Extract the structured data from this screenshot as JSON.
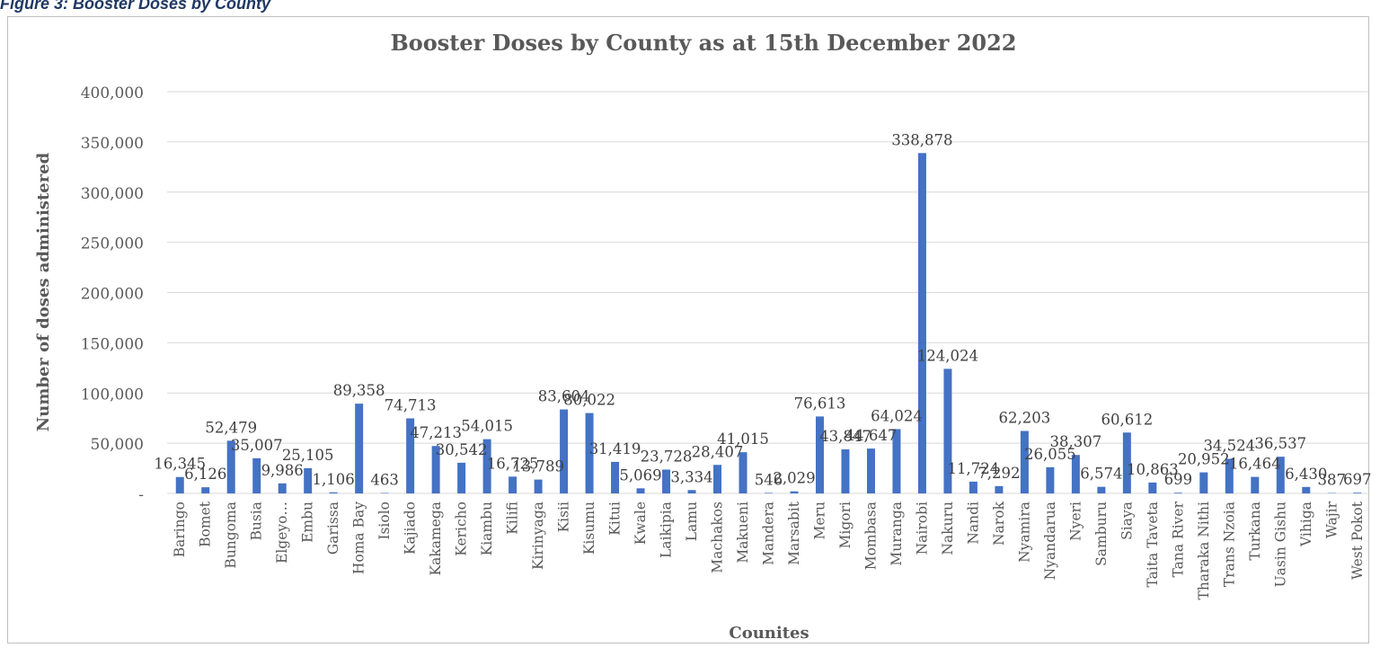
{
  "caption": "Figure 3: Booster Doses by County",
  "chart_data": {
    "type": "bar",
    "title": "Booster Doses by County as at 15th December 2022",
    "xlabel": "Counites",
    "ylabel": "Number of doses administered",
    "ylim": [
      0,
      400000
    ],
    "yticks": [
      0,
      50000,
      100000,
      150000,
      200000,
      250000,
      300000,
      350000,
      400000
    ],
    "ytick_labels": [
      "-",
      "50,000",
      "100,000",
      "150,000",
      "200,000",
      "250,000",
      "300,000",
      "350,000",
      "400,000"
    ],
    "grid": true,
    "legend": "none",
    "bar_color": "#4472c4",
    "categories": [
      "Baringo",
      "Bomet",
      "Bungoma",
      "Busia",
      "Elgeyo…",
      "Embu",
      "Garissa",
      "Homa Bay",
      "Isiolo",
      "Kajiado",
      "Kakamega",
      "Kericho",
      "Kiambu",
      "Kilifi",
      "Kirinyaga",
      "Kisii",
      "Kisumu",
      "Kitui",
      "Kwale",
      "Laikipia",
      "Lamu",
      "Machakos",
      "Makueni",
      "Mandera",
      "Marsabit",
      "Meru",
      "Migori",
      "Mombasa",
      "Muranga",
      "Nairobi",
      "Nakuru",
      "Nandi",
      "Narok",
      "Nyamira",
      "Nyandarua",
      "Nyeri",
      "Samburu",
      "Siaya",
      "Taita Taveta",
      "Tana River",
      "Tharaka Nithi",
      "Trans Nzoia",
      "Turkana",
      "Uasin Gishu",
      "Vihiga",
      "Wajir",
      "West Pokot"
    ],
    "values": [
      16345,
      6126,
      52479,
      35007,
      9986,
      25105,
      1106,
      89358,
      463,
      74713,
      47213,
      30542,
      54015,
      16725,
      13789,
      83604,
      80022,
      31419,
      5069,
      23728,
      3334,
      28407,
      41015,
      546,
      2029,
      76613,
      43847,
      44647,
      64024,
      338878,
      124024,
      11724,
      7292,
      62203,
      26055,
      38307,
      6574,
      60612,
      10863,
      699,
      20952,
      34524,
      16464,
      36537,
      6430,
      387,
      697
    ],
    "data_labels": [
      "16,345",
      "6,126",
      "52,479",
      "35,007",
      "9,986",
      "25,105",
      "1,106",
      "89,358",
      "463",
      "74,713",
      "47,213",
      "30,542",
      "54,015",
      "16,725",
      "13,789",
      "83,604",
      "80,022",
      "31,419",
      "5,069",
      "23,728",
      "3,334",
      "28,407",
      "41,015",
      "546",
      "2,029",
      "76,613",
      "43,847",
      "44,647",
      "64,024",
      "338,878",
      "124,024",
      "11,724",
      "7,292",
      "62,203",
      "26,055",
      "38,307",
      "6,574",
      "60,612",
      "10,863",
      "699",
      "20,952",
      "34,524",
      "16,464",
      "36,537",
      "6,430",
      "387",
      "697"
    ]
  }
}
